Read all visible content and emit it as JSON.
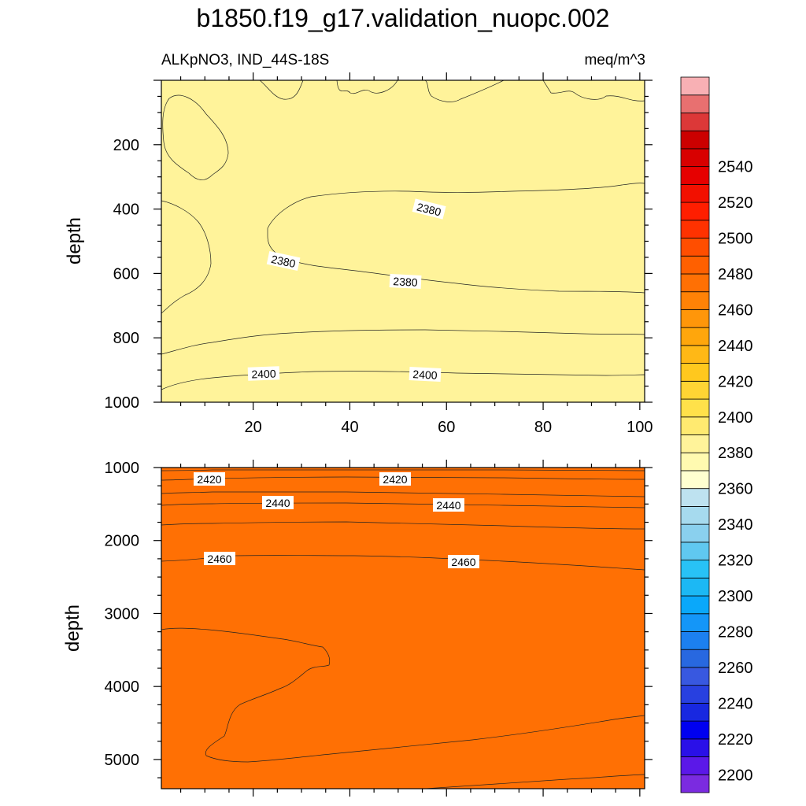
{
  "chart_data": {
    "type": "contour",
    "title": "b1850.f19_g17.validation_nuopc.002",
    "left_subtitle": "ALKpNO3, IND_44S-18S",
    "right_subtitle": "meq/m^3",
    "ylabel": "depth",
    "colorbar": {
      "levels": [
        2200,
        2210,
        2220,
        2230,
        2240,
        2250,
        2260,
        2270,
        2280,
        2290,
        2300,
        2310,
        2320,
        2330,
        2340,
        2350,
        2360,
        2370,
        2380,
        2390,
        2400,
        2410,
        2420,
        2430,
        2440,
        2450,
        2460,
        2470,
        2480,
        2490,
        2500,
        2510,
        2520,
        2530,
        2540,
        2550
      ],
      "tick_labels": [
        "2200",
        "2220",
        "2240",
        "2260",
        "2280",
        "2300",
        "2320",
        "2340",
        "2360",
        "2380",
        "2400",
        "2420",
        "2440",
        "2460",
        "2480",
        "2500",
        "2520",
        "2540"
      ],
      "colors_bottom_to_top": [
        "#7B2BE0",
        "#5B18E8",
        "#2A10E8",
        "#0000F0",
        "#1828E0",
        "#2840E0",
        "#3858E0",
        "#2868E0",
        "#1C80F0",
        "#1496F8",
        "#0AA8FA",
        "#1CB8F4",
        "#28C2F6",
        "#60C8F0",
        "#8AD0EE",
        "#A6DAEE",
        "#BEE2F0",
        "#FFFFD0",
        "#FFFAB0",
        "#FFF39A",
        "#FFEA70",
        "#FFE14A",
        "#FFD534",
        "#FFC81E",
        "#FFB816",
        "#FFA60C",
        "#FF960A",
        "#FF8206",
        "#FF7004",
        "#FF6000",
        "#FF4E00",
        "#FF3200",
        "#FF1E00",
        "#F21000",
        "#E60000",
        "#D80000",
        "#CC0000",
        "#DC3838",
        "#E87070",
        "#F8B0B4"
      ]
    },
    "panels": [
      {
        "name": "upper",
        "xlim": [
          1,
          101
        ],
        "ylim": [
          1000,
          0
        ],
        "xticks": [
          "20",
          "40",
          "60",
          "80",
          "100"
        ],
        "yticks": [
          "200",
          "400",
          "600",
          "800",
          "1000"
        ],
        "contour_labels": [
          {
            "text": "2380"
          },
          {
            "text": "2380"
          },
          {
            "text": "2380"
          },
          {
            "text": "2400"
          },
          {
            "text": "2400"
          }
        ]
      },
      {
        "name": "lower",
        "xlim": [
          1,
          101
        ],
        "ylim": [
          5400,
          1000
        ],
        "xticks": [],
        "yticks": [
          "1000",
          "2000",
          "3000",
          "4000",
          "5000"
        ],
        "contour_labels": [
          {
            "text": "2420"
          },
          {
            "text": "2420"
          },
          {
            "text": "2440"
          },
          {
            "text": "2440"
          },
          {
            "text": "2460"
          },
          {
            "text": "2460"
          }
        ]
      }
    ]
  }
}
